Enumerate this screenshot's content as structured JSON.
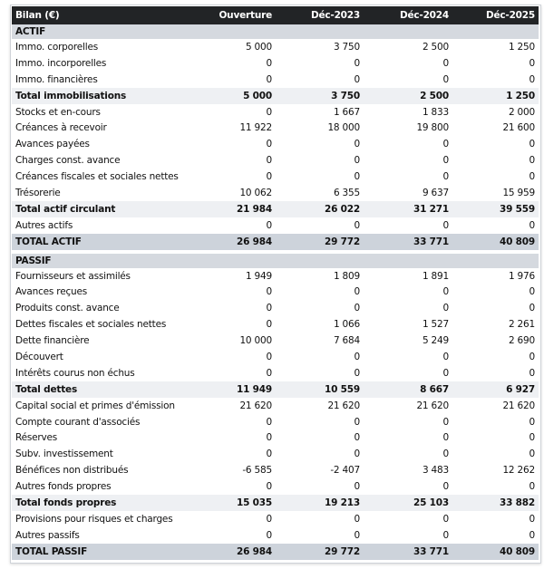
{
  "header": {
    "label": "Bilan (€)",
    "columns": [
      "Ouverture",
      "Déc-2023",
      "Déc-2024",
      "Déc-2025"
    ]
  },
  "rows": [
    {
      "type": "section",
      "label": "ACTIF"
    },
    {
      "type": "row",
      "label": "Immo. corporelles",
      "values": [
        "5 000",
        "3 750",
        "2 500",
        "1 250"
      ]
    },
    {
      "type": "row",
      "label": "Immo. incorporelles",
      "values": [
        "0",
        "0",
        "0",
        "0"
      ]
    },
    {
      "type": "row",
      "label": "Immo. financières",
      "values": [
        "0",
        "0",
        "0",
        "0"
      ]
    },
    {
      "type": "subtotal",
      "label": "Total immobilisations",
      "values": [
        "5 000",
        "3 750",
        "2 500",
        "1 250"
      ]
    },
    {
      "type": "row",
      "label": "Stocks et en-cours",
      "values": [
        "0",
        "1 667",
        "1 833",
        "2 000"
      ]
    },
    {
      "type": "row",
      "label": "Créances à recevoir",
      "values": [
        "11 922",
        "18 000",
        "19 800",
        "21 600"
      ]
    },
    {
      "type": "row",
      "label": "Avances payées",
      "values": [
        "0",
        "0",
        "0",
        "0"
      ]
    },
    {
      "type": "row",
      "label": "Charges const. avance",
      "values": [
        "0",
        "0",
        "0",
        "0"
      ]
    },
    {
      "type": "row",
      "label": "Créances fiscales et sociales nettes",
      "values": [
        "0",
        "0",
        "0",
        "0"
      ]
    },
    {
      "type": "row",
      "label": "Trésorerie",
      "values": [
        "10 062",
        "6 355",
        "9 637",
        "15 959"
      ]
    },
    {
      "type": "subtotal",
      "label": "Total actif circulant",
      "values": [
        "21 984",
        "26 022",
        "31 271",
        "39 559"
      ]
    },
    {
      "type": "row",
      "label": "Autres actifs",
      "values": [
        "0",
        "0",
        "0",
        "0"
      ]
    },
    {
      "type": "total",
      "label": "TOTAL ACTIF",
      "values": [
        "26 984",
        "29 772",
        "33 771",
        "40 809"
      ]
    },
    {
      "type": "gap"
    },
    {
      "type": "section",
      "label": "PASSIF"
    },
    {
      "type": "row",
      "label": "Fournisseurs et assimilés",
      "values": [
        "1 949",
        "1 809",
        "1 891",
        "1 976"
      ]
    },
    {
      "type": "row",
      "label": "Avances reçues",
      "values": [
        "0",
        "0",
        "0",
        "0"
      ]
    },
    {
      "type": "row",
      "label": "Produits const. avance",
      "values": [
        "0",
        "0",
        "0",
        "0"
      ]
    },
    {
      "type": "row",
      "label": "Dettes fiscales et sociales nettes",
      "values": [
        "0",
        "1 066",
        "1 527",
        "2 261"
      ]
    },
    {
      "type": "row",
      "label": "Dette financière",
      "values": [
        "10 000",
        "7 684",
        "5 249",
        "2 690"
      ]
    },
    {
      "type": "row",
      "label": "Découvert",
      "values": [
        "0",
        "0",
        "0",
        "0"
      ]
    },
    {
      "type": "row",
      "label": "Intérêts courus non échus",
      "values": [
        "0",
        "0",
        "0",
        "0"
      ]
    },
    {
      "type": "subtotal",
      "label": "Total dettes",
      "values": [
        "11 949",
        "10 559",
        "8 667",
        "6 927"
      ]
    },
    {
      "type": "row",
      "label": "Capital social et primes d'émission",
      "values": [
        "21 620",
        "21 620",
        "21 620",
        "21 620"
      ]
    },
    {
      "type": "row",
      "label": "Compte courant d'associés",
      "values": [
        "0",
        "0",
        "0",
        "0"
      ]
    },
    {
      "type": "row",
      "label": "Réserves",
      "values": [
        "0",
        "0",
        "0",
        "0"
      ]
    },
    {
      "type": "row",
      "label": "Subv. investissement",
      "values": [
        "0",
        "0",
        "0",
        "0"
      ]
    },
    {
      "type": "row",
      "label": "Bénéfices non distribués",
      "values": [
        "-6 585",
        "-2 407",
        "3 483",
        "12 262"
      ]
    },
    {
      "type": "row",
      "label": "Autres fonds propres",
      "values": [
        "0",
        "0",
        "0",
        "0"
      ]
    },
    {
      "type": "subtotal",
      "label": "Total fonds propres",
      "values": [
        "15 035",
        "19 213",
        "25 103",
        "33 882"
      ]
    },
    {
      "type": "row",
      "label": "Provisions pour risques et charges",
      "values": [
        "0",
        "0",
        "0",
        "0"
      ]
    },
    {
      "type": "row",
      "label": "Autres passifs",
      "values": [
        "0",
        "0",
        "0",
        "0"
      ]
    },
    {
      "type": "total",
      "label": "TOTAL PASSIF",
      "values": [
        "26 984",
        "29 772",
        "33 771",
        "40 809"
      ]
    }
  ]
}
